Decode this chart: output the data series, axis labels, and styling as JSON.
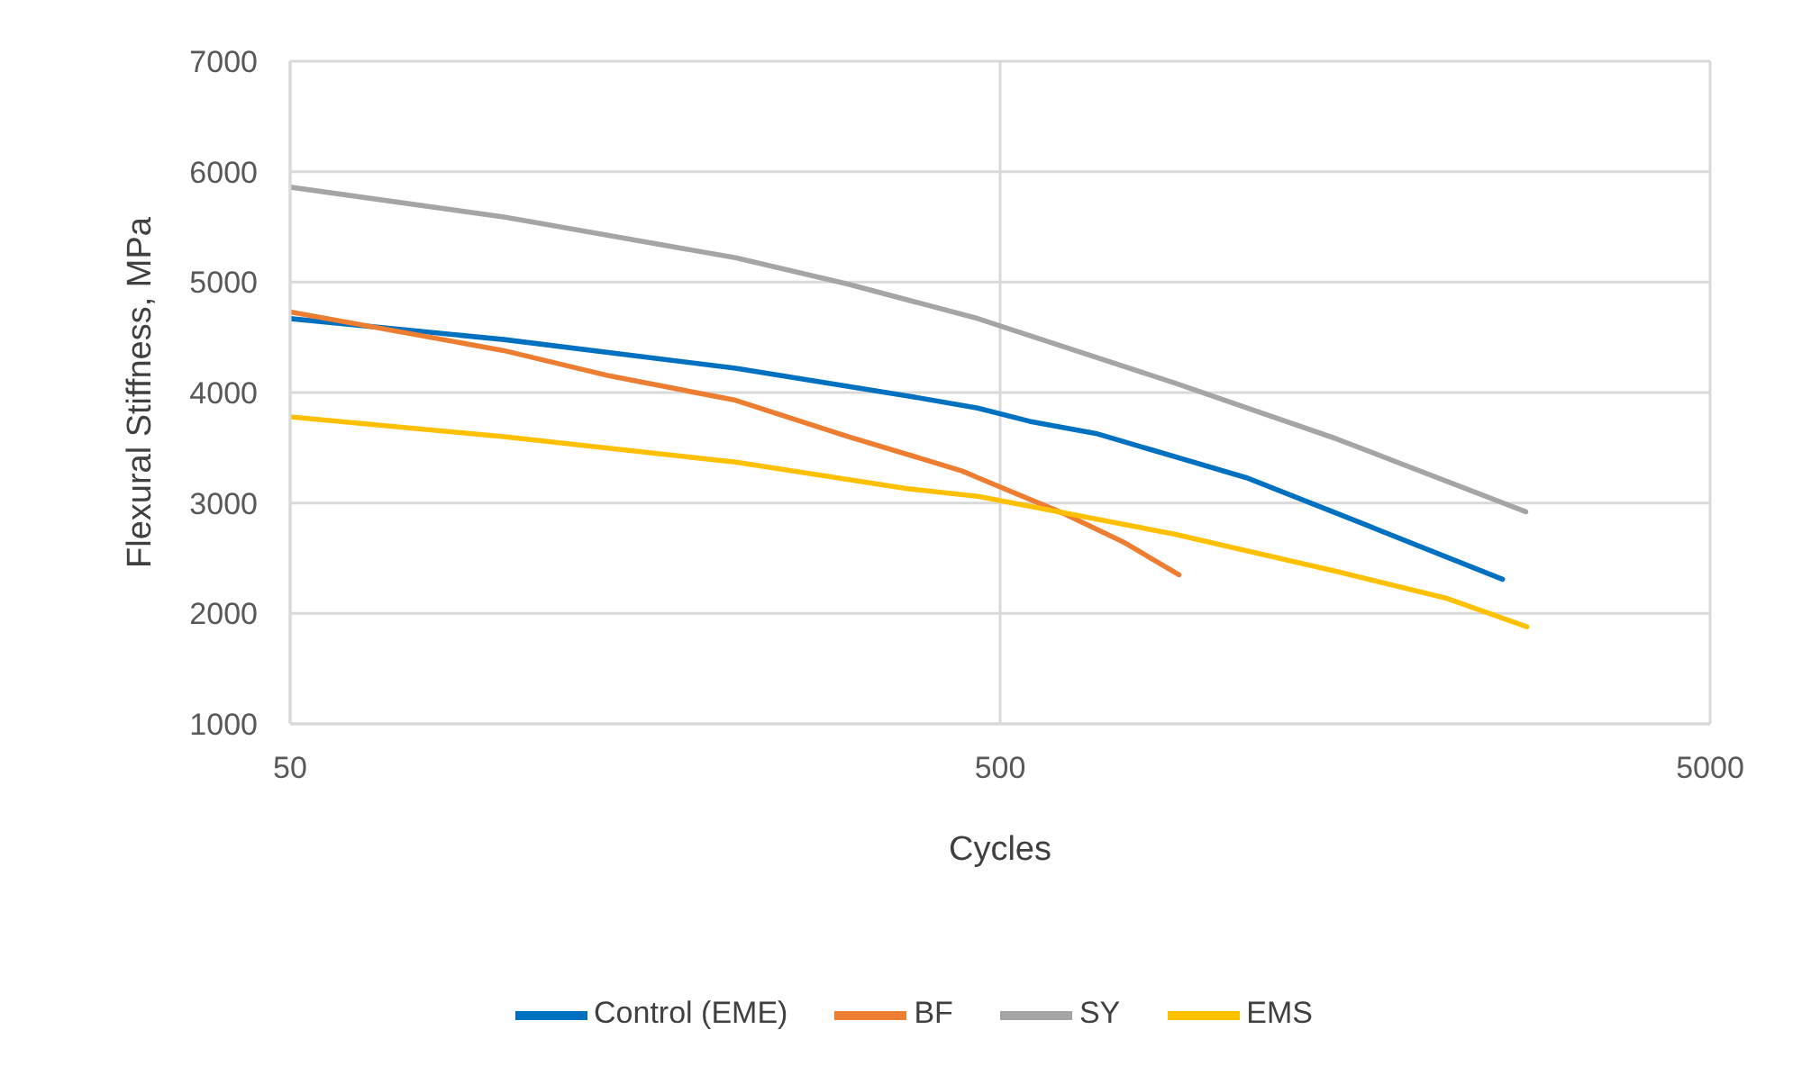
{
  "chart_data": {
    "type": "line",
    "xlabel": "Cycles",
    "ylabel": "Flexural Stiffness, MPa",
    "log": "x",
    "xlim": [
      50,
      5000
    ],
    "xticks": [
      50,
      500,
      5000
    ],
    "ylim": [
      1000,
      7000
    ],
    "yticks": [
      1000,
      2000,
      3000,
      4000,
      5000,
      6000,
      7000
    ],
    "grid": true,
    "legend": "bottom",
    "marker": "none",
    "line_style": "solid",
    "series": [
      {
        "name": "Control (EME)",
        "color": "#0070c0",
        "x": [
          50,
          100,
          212,
          370,
          465,
          550,
          682,
          1110,
          1640,
          2550
        ],
        "values": [
          4670,
          4480,
          4220,
          3970,
          3860,
          3740,
          3630,
          3230,
          2800,
          2310
        ]
      },
      {
        "name": "BF",
        "color": "#ed7d31",
        "x": [
          50,
          100,
          141,
          212,
          306,
          442,
          465,
          617,
          749,
          893
        ],
        "values": [
          4730,
          4380,
          4150,
          3930,
          3600,
          3290,
          3230,
          2900,
          2640,
          2350
        ]
      },
      {
        "name": "SY",
        "color": "#a5a5a5",
        "x": [
          50,
          100,
          212,
          306,
          465,
          877,
          1490,
          2750
        ],
        "values": [
          5860,
          5590,
          5220,
          4980,
          4670,
          4090,
          3580,
          2920
        ]
      },
      {
        "name": "EMS",
        "color": "#ffc000",
        "x": [
          50,
          100,
          212,
          370,
          465,
          550,
          877,
          1490,
          2120,
          2760
        ],
        "values": [
          3780,
          3600,
          3370,
          3130,
          3060,
          2970,
          2720,
          2380,
          2140,
          1880
        ]
      }
    ]
  }
}
